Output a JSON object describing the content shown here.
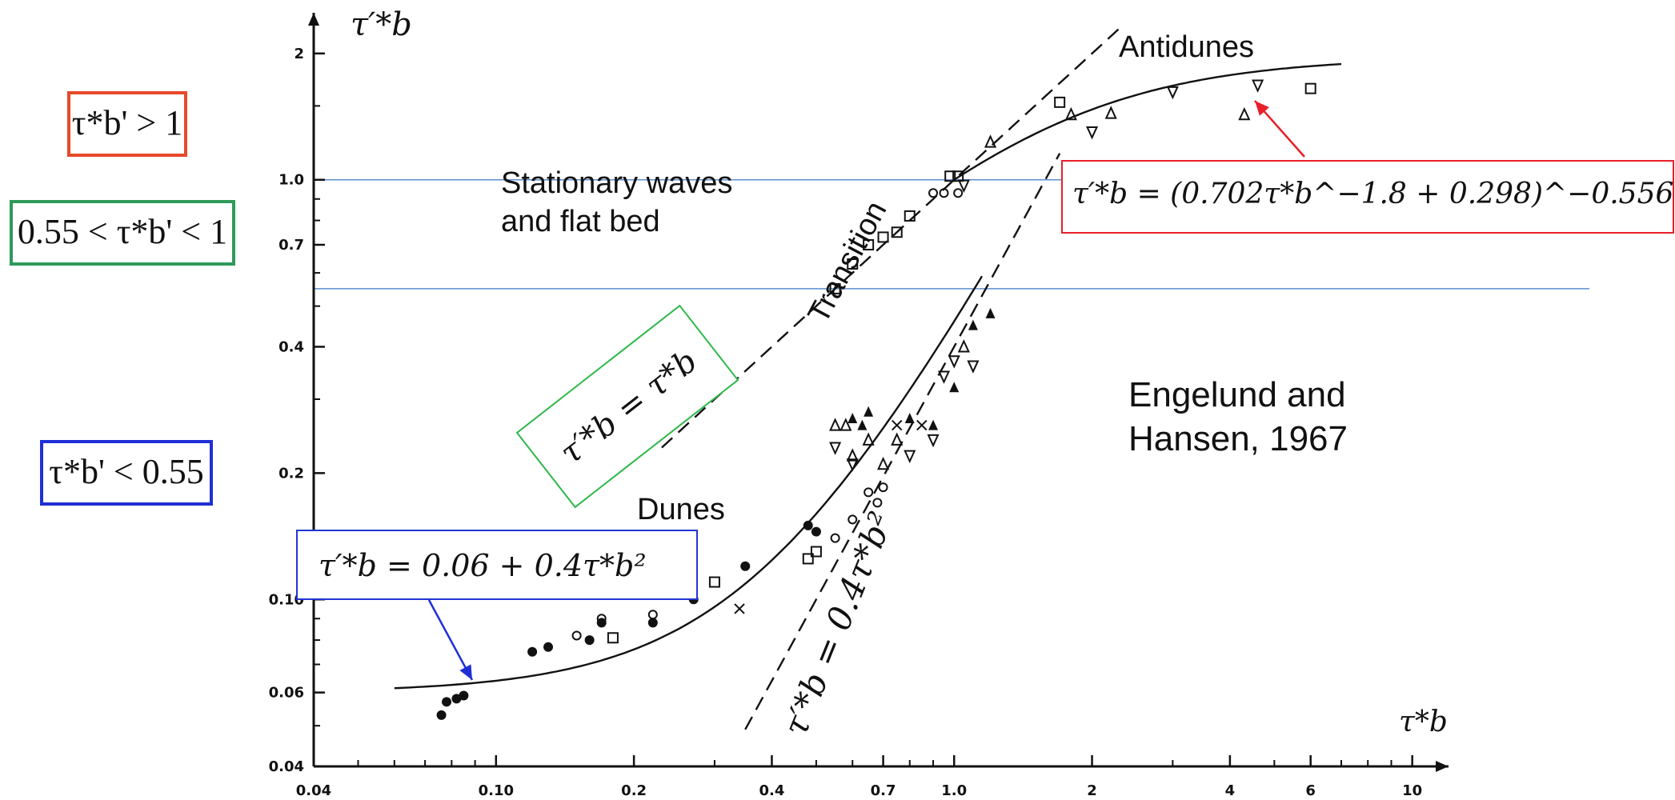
{
  "chart_data": {
    "type": "scatter",
    "title": "",
    "xlabel": "τ*b",
    "ylabel": "τ'*b",
    "x_scale": "log",
    "y_scale": "log",
    "xlim": [
      0.04,
      12
    ],
    "ylim": [
      0.04,
      2.5
    ],
    "x_ticks": [
      {
        "value": 0.04,
        "label": "0.04"
      },
      {
        "value": 0.1,
        "label": "0.10"
      },
      {
        "value": 0.2,
        "label": "0.2"
      },
      {
        "value": 0.4,
        "label": "0.4"
      },
      {
        "value": 0.7,
        "label": "0.7"
      },
      {
        "value": 1.0,
        "label": "1.0"
      },
      {
        "value": 2,
        "label": "2"
      },
      {
        "value": 4,
        "label": "4"
      },
      {
        "value": 6,
        "label": "6"
      },
      {
        "value": 10,
        "label": "10"
      }
    ],
    "y_ticks": [
      {
        "value": 0.04,
        "label": "0.04"
      },
      {
        "value": 0.06,
        "label": "0.06"
      },
      {
        "value": 0.1,
        "label": "0.10"
      },
      {
        "value": 0.2,
        "label": "0.2"
      },
      {
        "value": 0.4,
        "label": "0.4"
      },
      {
        "value": 0.7,
        "label": "0.7"
      },
      {
        "value": 1.0,
        "label": "1.0"
      },
      {
        "value": 2,
        "label": "2"
      }
    ],
    "reference_lines": [
      {
        "y": 1.0,
        "color": "#5b8fd0"
      },
      {
        "y": 0.55,
        "color": "#5b8fd0"
      }
    ],
    "curves": [
      {
        "name": "dunes_fit",
        "style": "solid",
        "formula": "0.06 + 0.4 x^2",
        "x_range": [
          0.06,
          1.15
        ]
      },
      {
        "name": "antidunes_fit",
        "style": "solid",
        "formula": "(0.702 x^-1.8 + 0.298)^-0.556",
        "x_range": [
          1.0,
          7.0
        ]
      },
      {
        "name": "flat_bed_line",
        "style": "dashed",
        "formula": "x",
        "x_range": [
          0.23,
          2.3
        ]
      },
      {
        "name": "dune_parabola",
        "style": "dashed",
        "formula": "0.4 x^2",
        "x_range": [
          0.35,
          1.7
        ]
      }
    ],
    "series": [
      {
        "marker": "filled-circle",
        "points": [
          [
            0.076,
            0.053
          ],
          [
            0.078,
            0.057
          ],
          [
            0.082,
            0.058
          ],
          [
            0.085,
            0.059
          ],
          [
            0.12,
            0.075
          ],
          [
            0.13,
            0.077
          ],
          [
            0.16,
            0.08
          ],
          [
            0.17,
            0.088
          ],
          [
            0.22,
            0.088
          ],
          [
            0.27,
            0.1
          ],
          [
            0.35,
            0.12
          ],
          [
            0.5,
            0.145
          ],
          [
            0.48,
            0.15
          ]
        ]
      },
      {
        "marker": "open-circle",
        "points": [
          [
            0.15,
            0.082
          ],
          [
            0.17,
            0.09
          ],
          [
            0.22,
            0.092
          ],
          [
            0.55,
            0.14
          ],
          [
            0.6,
            0.155
          ],
          [
            0.65,
            0.18
          ],
          [
            0.68,
            0.17
          ],
          [
            0.7,
            0.185
          ],
          [
            0.9,
            0.93
          ],
          [
            0.95,
            0.93
          ],
          [
            1.02,
            0.93
          ]
        ]
      },
      {
        "marker": "open-square",
        "points": [
          [
            0.18,
            0.081
          ],
          [
            0.3,
            0.11
          ],
          [
            0.48,
            0.125
          ],
          [
            0.5,
            0.13
          ],
          [
            0.55,
            0.55
          ],
          [
            0.6,
            0.63
          ],
          [
            0.65,
            0.7
          ],
          [
            0.7,
            0.73
          ],
          [
            0.75,
            0.75
          ],
          [
            0.8,
            0.82
          ],
          [
            0.98,
            1.02
          ],
          [
            1.02,
            1.02
          ],
          [
            1.7,
            1.53
          ],
          [
            6.0,
            1.65
          ]
        ]
      },
      {
        "marker": "open-triangle",
        "points": [
          [
            0.55,
            0.26
          ],
          [
            0.58,
            0.26
          ],
          [
            0.6,
            0.22
          ],
          [
            0.65,
            0.24
          ],
          [
            0.7,
            0.21
          ],
          [
            0.75,
            0.24
          ],
          [
            1.05,
            0.4
          ],
          [
            1.2,
            1.23
          ],
          [
            1.8,
            1.43
          ],
          [
            2.2,
            1.44
          ],
          [
            4.3,
            1.43
          ]
        ]
      },
      {
        "marker": "filled-triangle",
        "points": [
          [
            0.6,
            0.27
          ],
          [
            0.63,
            0.26
          ],
          [
            0.65,
            0.28
          ],
          [
            0.8,
            0.27
          ],
          [
            0.9,
            0.26
          ],
          [
            1.0,
            0.32
          ],
          [
            1.1,
            0.45
          ],
          [
            1.2,
            0.48
          ]
        ]
      },
      {
        "marker": "inverted-triangle",
        "points": [
          [
            0.55,
            0.23
          ],
          [
            0.6,
            0.21
          ],
          [
            0.8,
            0.22
          ],
          [
            0.9,
            0.24
          ],
          [
            0.95,
            0.34
          ],
          [
            1.0,
            0.37
          ],
          [
            1.1,
            0.36
          ],
          [
            1.05,
            0.97
          ],
          [
            2.0,
            1.3
          ],
          [
            3.0,
            1.62
          ],
          [
            4.6,
            1.68
          ]
        ]
      },
      {
        "marker": "cross",
        "points": [
          [
            0.34,
            0.095
          ],
          [
            0.75,
            0.26
          ],
          [
            0.85,
            0.26
          ]
        ]
      }
    ]
  },
  "annotations": {
    "stationary_waves": "Stationary waves\nand flat bed",
    "antidunes": "Antidunes",
    "transition": "Transition",
    "dunes": "Dunes",
    "reference": "Engelund and\nHansen, 1967"
  },
  "equations": {
    "ylabel_eq": "τ′*b",
    "xlabel_eq": "τ*b",
    "antidunes_eq": "τ′*b = (0.702τ*b^−1.8 + 0.298)^−0.556",
    "flat_bed_eq": "τ′*b = τ*b",
    "dunes_eq": "τ′*b = 0.06 + 0.4τ*b²",
    "parabola_eq": "τ′*b = 0.4τ*b²"
  },
  "regime_labels": {
    "upper": "τ*b' > 1",
    "middle": "0.55 < τ*b' < 1",
    "lower": "τ*b' < 0.55"
  },
  "colors": {
    "upper_box": "#e8492a",
    "middle_box": "#2e9a5a",
    "lower_box": "#1f2fd6",
    "antidunes_eq_box": "#e8202a",
    "flat_bed_eq_box": "#2fb84a",
    "dunes_eq_box": "#2235d6",
    "hline": "#5b8fd0",
    "red_arrow": "#e8202a",
    "blue_arrow": "#1f2fd6"
  }
}
